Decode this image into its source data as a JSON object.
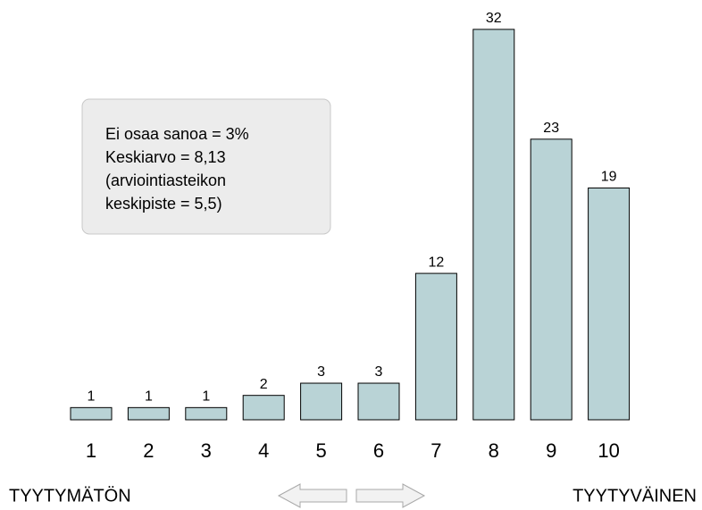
{
  "chart_data": {
    "type": "bar",
    "categories": [
      "1",
      "2",
      "3",
      "4",
      "5",
      "6",
      "7",
      "8",
      "9",
      "10"
    ],
    "values": [
      1,
      1,
      1,
      2,
      3,
      3,
      12,
      32,
      23,
      19
    ],
    "color": "#b9d3d6",
    "annotation": [
      "Ei osaa sanoa = 3%",
      "Keskiarvo = 8,13",
      "(arviointiasteikon",
      "keskipiste = 5,5)"
    ],
    "left_label": "TYYTYMÄTÖN",
    "right_label": "TYYTYVÄINEN"
  }
}
